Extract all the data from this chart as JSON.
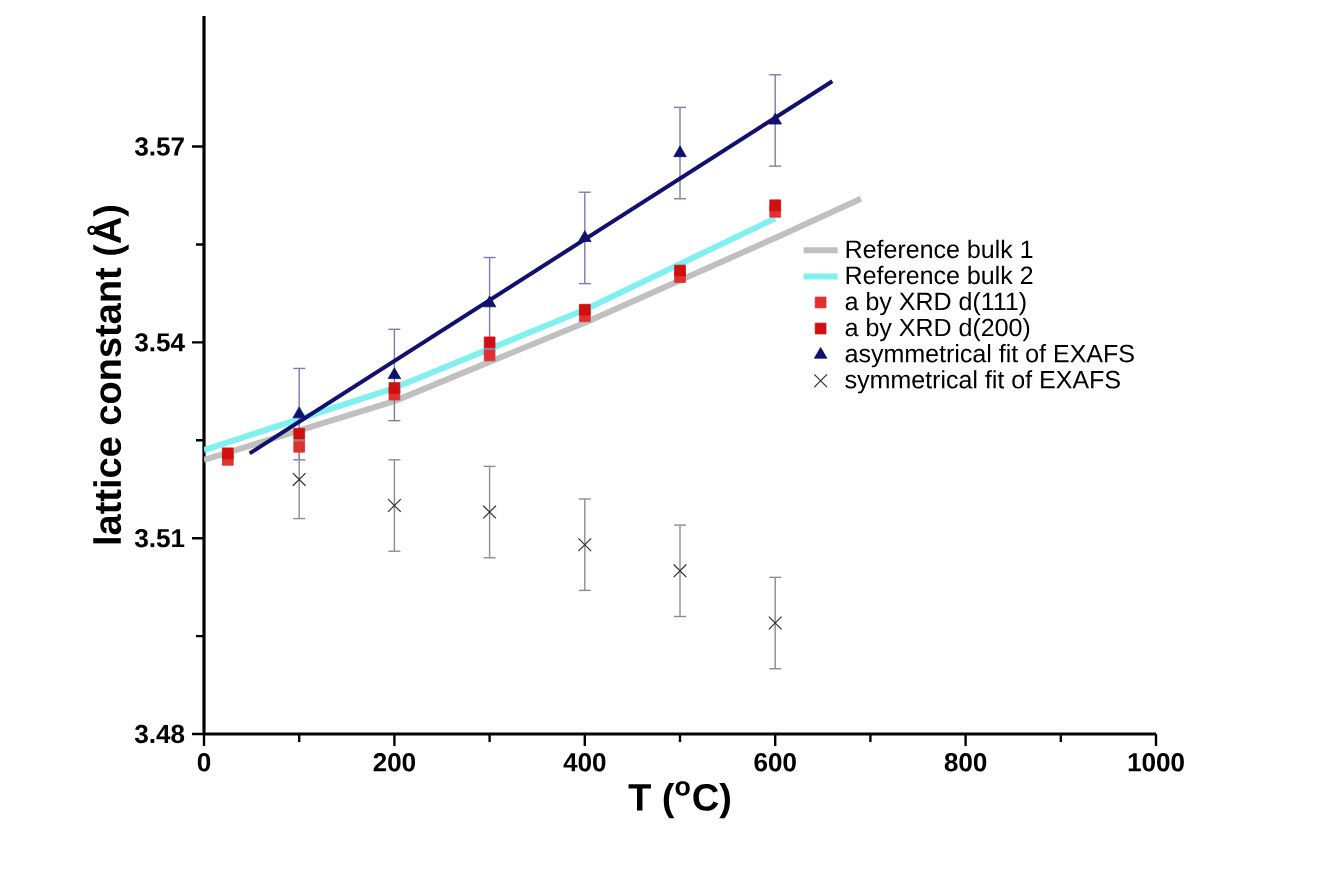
{
  "chart_data": {
    "type": "scatter",
    "xlabel": "T ($^{o}$C)",
    "ylabel": "lattice constant (Å)",
    "xlim": [
      0,
      1000
    ],
    "ylim": [
      3.48,
      3.59
    ],
    "xticks": [
      0,
      200,
      400,
      600,
      800,
      1000
    ],
    "yticks": [
      3.48,
      3.51,
      3.54,
      3.57
    ],
    "grid": false,
    "legend": "right",
    "series": [
      {
        "name": "Reference bulk 1",
        "type": "line",
        "color": "#c0c0c0",
        "x": [
          0,
          200,
          400,
          600,
          690
        ],
        "values": [
          3.522,
          3.531,
          3.543,
          3.556,
          3.562
        ]
      },
      {
        "name": "Reference bulk 2",
        "type": "line",
        "color": "#80f0f0",
        "x": [
          0,
          200,
          400,
          600
        ],
        "values": [
          3.5235,
          3.533,
          3.545,
          3.559
        ]
      },
      {
        "name": "a by XRD d(111)",
        "color": "#e03030",
        "marker": "square",
        "x": [
          25,
          100,
          200,
          300,
          400,
          500,
          600
        ],
        "values": [
          3.522,
          3.524,
          3.532,
          3.538,
          3.544,
          3.55,
          3.56
        ]
      },
      {
        "name": "a by XRD d(200)",
        "color": "#d01010",
        "marker": "square",
        "x": [
          25,
          100,
          200,
          300,
          400,
          500,
          600
        ],
        "values": [
          3.523,
          3.526,
          3.533,
          3.54,
          3.545,
          3.551,
          3.561
        ]
      },
      {
        "name": "asymmetrical fit of EXAFS",
        "color": "#10106e",
        "marker": "triangle",
        "x": [
          100,
          200,
          300,
          400,
          500,
          600
        ],
        "values": [
          3.529,
          3.535,
          3.546,
          3.556,
          3.569,
          3.574
        ],
        "errors": [
          0.007,
          0.007,
          0.007,
          0.007,
          0.007,
          0.007
        ]
      },
      {
        "type": "line",
        "color": "#10106e",
        "x": [
          48,
          660
        ],
        "values": [
          3.523,
          3.58
        ]
      },
      {
        "name": "symmetrical fit of EXAFS",
        "color": "#303030",
        "marker": "cross",
        "x": [
          100,
          200,
          300,
          400,
          500,
          600
        ],
        "values": [
          3.519,
          3.515,
          3.514,
          3.509,
          3.505,
          3.497
        ],
        "errors": [
          0.006,
          0.007,
          0.007,
          0.007,
          0.007,
          0.007
        ]
      }
    ]
  }
}
